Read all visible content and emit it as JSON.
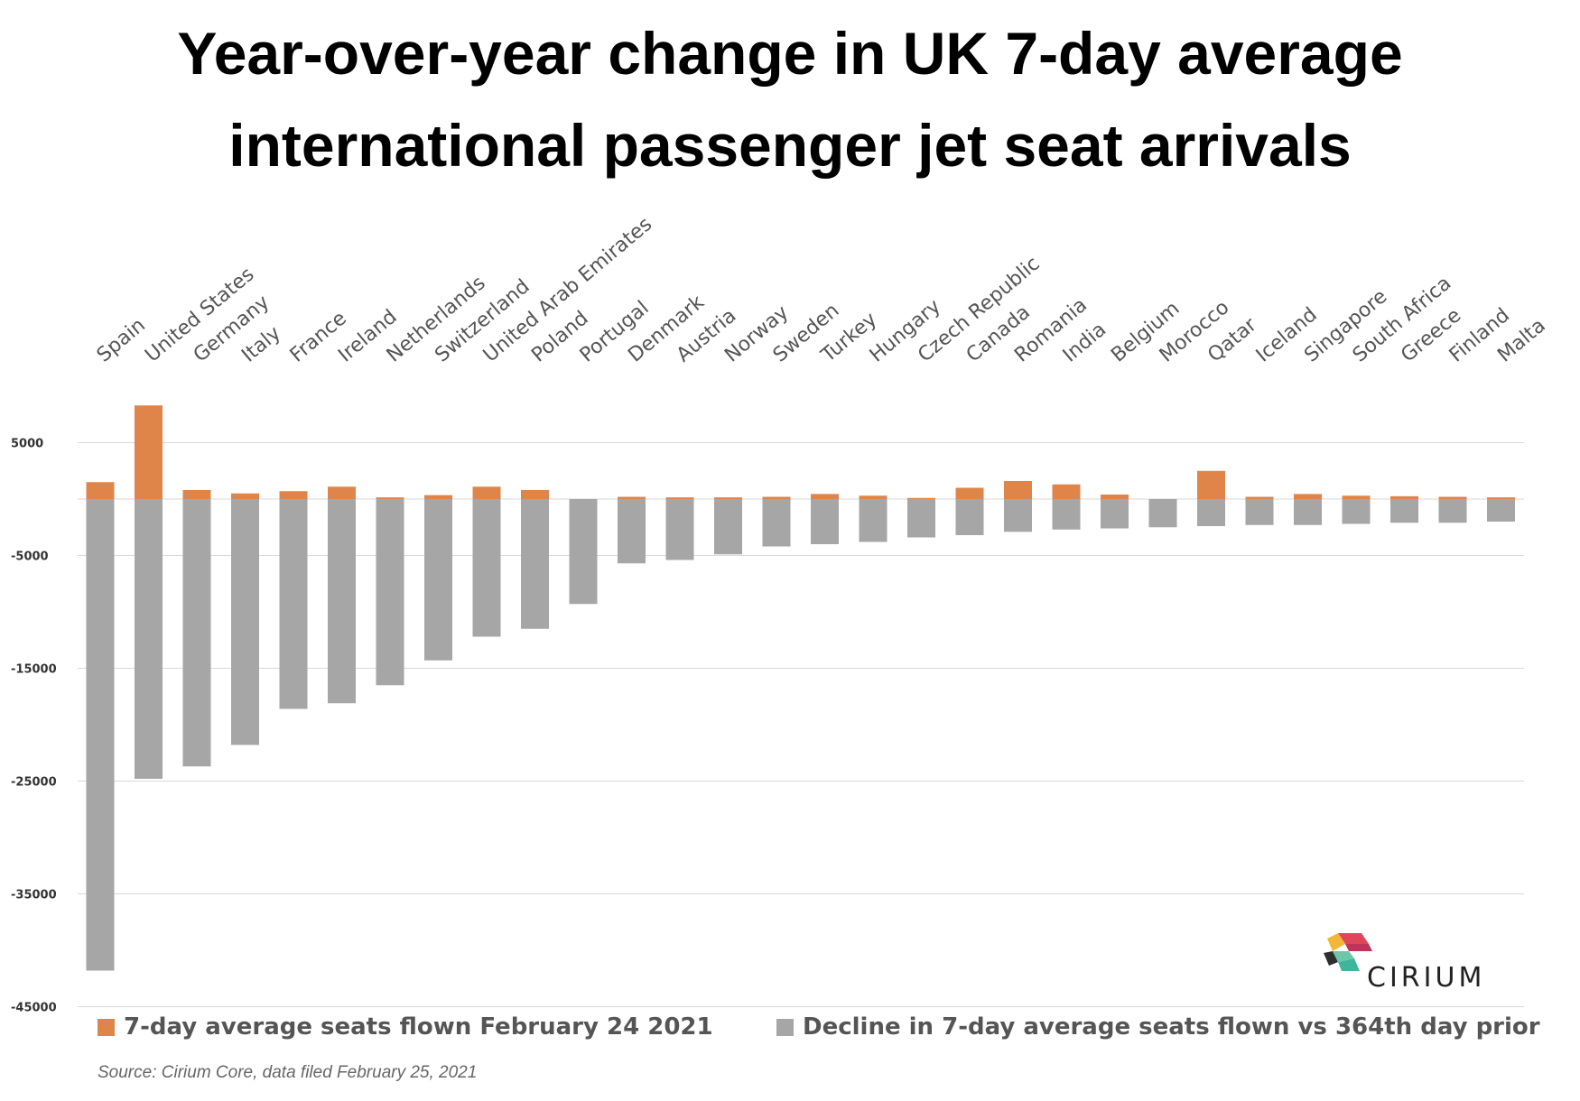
{
  "title": {
    "line1": "Year-over-year change in UK 7-day average",
    "line2": "international passenger jet seat arrivals"
  },
  "chart_data": {
    "type": "bar",
    "stacked": true,
    "categories": [
      "Spain",
      "United States",
      "Germany",
      "Italy",
      "France",
      "Ireland",
      "Netherlands",
      "Switzerland",
      "United Arab Emirates",
      "Poland",
      "Portugal",
      "Denmark",
      "Austria",
      "Norway",
      "Sweden",
      "Turkey",
      "Hungary",
      "Czech Republic",
      "Canada",
      "Romania",
      "India",
      "Belgium",
      "Morocco",
      "Qatar",
      "Iceland",
      "Singapore",
      "South Africa",
      "Greece",
      "Finland",
      "Malta"
    ],
    "series": [
      {
        "name": "7-day average seats flown February 24 2021",
        "color": "#E0854A",
        "values": [
          1500,
          8300,
          800,
          500,
          700,
          1100,
          150,
          350,
          1100,
          800,
          0,
          200,
          150,
          150,
          200,
          450,
          300,
          100,
          1000,
          1600,
          1300,
          400,
          0,
          2500,
          200,
          450,
          300,
          250,
          200,
          150
        ]
      },
      {
        "name": "Decline in 7-day average seats flown vs 364th day prior",
        "color": "#A6A6A6",
        "values": [
          -41800,
          -24800,
          -23700,
          -21800,
          -18600,
          -18100,
          -16500,
          -14300,
          -12200,
          -11500,
          -9300,
          -5700,
          -5400,
          -4900,
          -4200,
          -4000,
          -3800,
          -3400,
          -3200,
          -2900,
          -2700,
          -2600,
          -2500,
          -2400,
          -2300,
          -2300,
          -2200,
          -2100,
          -2100,
          -2000
        ]
      }
    ],
    "yticks": [
      5000,
      -5000,
      -15000,
      -25000,
      -35000,
      -45000
    ],
    "ylim": [
      -45000,
      10000
    ],
    "grid": true,
    "legend_position": "bottom",
    "source": "Source: Cirium Core, data filed February 25, 2021"
  },
  "logo": {
    "text": "CIRIUM"
  }
}
